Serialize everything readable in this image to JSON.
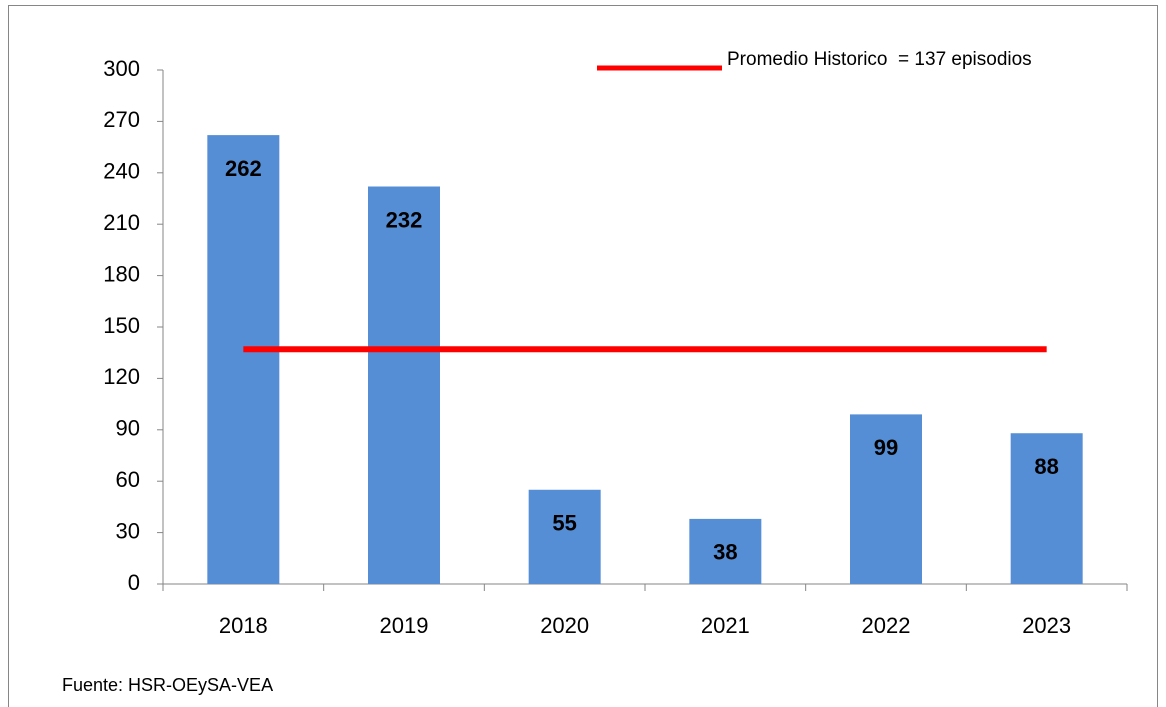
{
  "chart_data": {
    "type": "bar",
    "categories": [
      "2018",
      "2019",
      "2020",
      "2021",
      "2022",
      "2023"
    ],
    "series": [
      {
        "type": "bar",
        "color": "#558ed5",
        "values": [
          262,
          232,
          55,
          38,
          99,
          88
        ]
      },
      {
        "type": "line",
        "name": "Promedio Historico  = 137 episodios",
        "color": "#ff0000",
        "values": [
          137,
          137,
          137,
          137,
          137,
          137
        ]
      }
    ],
    "ylim": [
      0,
      300
    ],
    "yticks": [
      0,
      30,
      60,
      90,
      120,
      150,
      180,
      210,
      240,
      270,
      300
    ],
    "grid": false,
    "legend": "top-right",
    "source": "Fuente: HSR-OEySA-VEA"
  }
}
